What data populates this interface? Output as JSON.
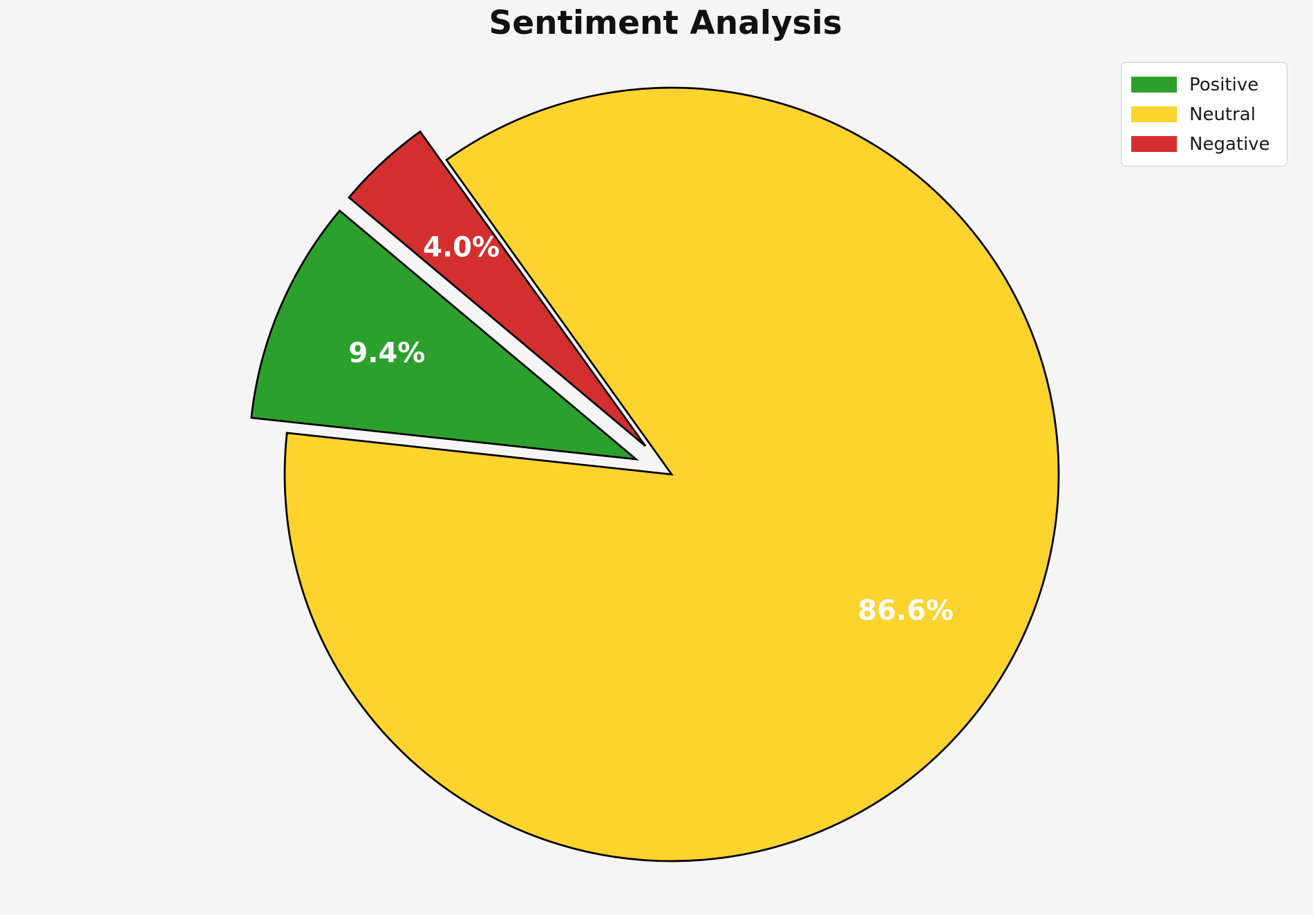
{
  "title": "Sentiment Analysis",
  "chart_data": {
    "type": "pie",
    "title": "Sentiment Analysis",
    "categories": [
      "Positive",
      "Neutral",
      "Negative"
    ],
    "values": [
      9.4,
      86.6,
      4.0
    ],
    "slices": [
      {
        "label": "Positive",
        "value": 9.4,
        "pct_label": "9.4%",
        "color": "#2ca02c",
        "explode": 0.1
      },
      {
        "label": "Neutral",
        "value": 86.6,
        "pct_label": "86.6%",
        "color": "#fdd32e",
        "explode": 0.0
      },
      {
        "label": "Negative",
        "value": 4.0,
        "pct_label": "4.0%",
        "color": "#d32f2f",
        "explode": 0.1
      }
    ],
    "start_angle_deg": 140,
    "direction": "counterclockwise",
    "pct_distance": 0.7,
    "pct_label_color": "#ffffff",
    "edge_color": "#000000",
    "background_color": "#f5f5f5",
    "legend_position": "upper-right",
    "grid": false
  },
  "legend": {
    "items": [
      {
        "label": "Positive",
        "color": "#2ca02c"
      },
      {
        "label": "Neutral",
        "color": "#fdd32e"
      },
      {
        "label": "Negative",
        "color": "#d32f2f"
      }
    ]
  }
}
